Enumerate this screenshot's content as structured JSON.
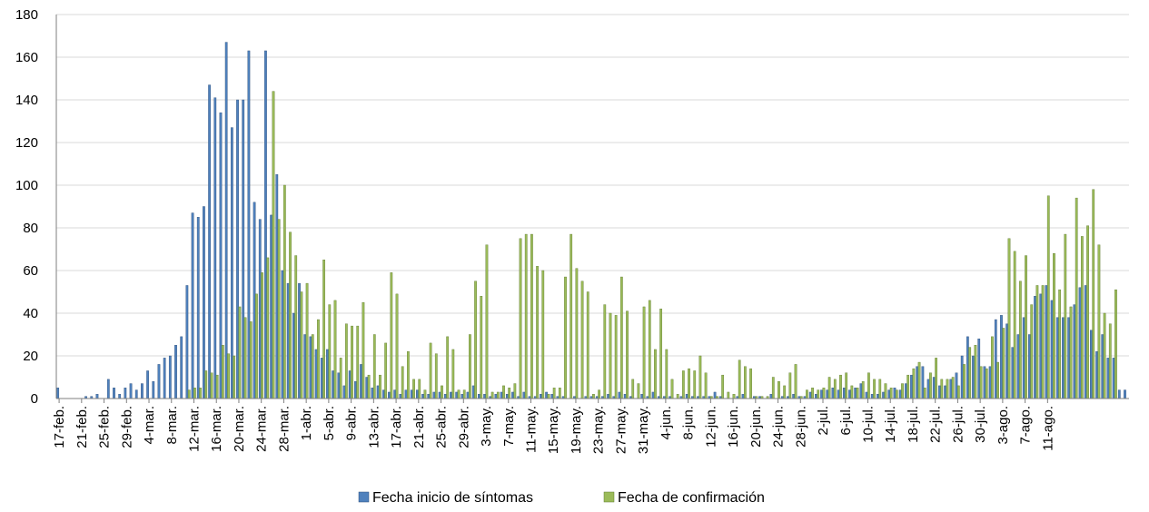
{
  "chart_data": {
    "type": "bar",
    "title": "",
    "xlabel": "",
    "ylabel": "",
    "ylim": [
      0,
      180
    ],
    "yticks": [
      0,
      20,
      40,
      60,
      80,
      100,
      120,
      140,
      160,
      180
    ],
    "grid": true,
    "legend_position": "bottom",
    "x_start": "17-feb.",
    "x_tick_labels": [
      "17-feb.",
      "21-feb.",
      "25-feb.",
      "29-feb.",
      "4-mar.",
      "8-mar.",
      "12-mar.",
      "16-mar.",
      "20-mar.",
      "24-mar.",
      "28-mar.",
      "1-abr.",
      "5-abr.",
      "9-abr.",
      "13-abr.",
      "17-abr.",
      "21-abr.",
      "25-abr.",
      "29-abr.",
      "3-may.",
      "7-may.",
      "11-may.",
      "15-may.",
      "19-may.",
      "23-may.",
      "27-may.",
      "31-may.",
      "4-jun.",
      "8-jun.",
      "12-jun.",
      "16-jun.",
      "20-jun.",
      "24-jun.",
      "28-jun.",
      "2-jul.",
      "6-jul.",
      "10-jul.",
      "14-jul.",
      "18-jul.",
      "22-jul.",
      "26-jul.",
      "30-jul.",
      "3-ago.",
      "7-ago.",
      "11-ago."
    ],
    "series": [
      {
        "name": "Fecha inicio de síntomas",
        "color": "#4F81BD",
        "values": [
          5,
          0,
          0,
          0,
          0,
          1,
          1,
          2,
          0,
          9,
          5,
          2,
          5,
          7,
          4,
          7,
          13,
          8,
          16,
          19,
          20,
          25,
          29,
          53,
          87,
          85,
          90,
          147,
          141,
          134,
          167,
          127,
          140,
          140,
          163,
          92,
          84,
          163,
          86,
          105,
          60,
          54,
          40,
          54,
          30,
          29,
          23,
          19,
          23,
          13,
          12,
          6,
          13,
          8,
          16,
          10,
          5,
          6,
          4,
          3,
          4,
          2,
          4,
          4,
          4,
          2,
          2,
          3,
          3,
          2,
          3,
          3,
          2,
          3,
          6,
          2,
          2,
          1,
          2,
          3,
          2,
          3,
          1,
          3,
          1,
          1,
          2,
          3,
          2,
          1,
          1,
          0,
          1,
          0,
          1,
          1,
          1,
          1,
          2,
          1,
          3,
          2,
          1,
          0,
          2,
          1,
          3,
          1,
          1,
          1,
          0,
          1,
          2,
          1,
          1,
          1,
          1,
          3,
          1,
          0,
          0,
          1,
          2,
          0,
          1,
          1,
          0,
          2,
          0,
          1,
          1,
          2,
          1,
          1,
          3,
          2,
          4,
          4,
          5,
          4,
          5,
          4,
          5,
          7,
          3,
          2,
          2,
          3,
          4,
          5,
          4,
          7,
          11,
          15,
          15,
          9,
          10,
          6,
          6,
          9,
          12,
          20,
          29,
          20,
          28,
          15,
          15,
          37,
          39,
          35,
          24,
          30,
          38,
          30,
          48,
          49,
          53,
          46,
          38,
          38,
          38,
          44,
          52,
          53,
          32,
          22,
          30,
          19,
          19,
          4,
          4
        ]
      },
      {
        "name": "Fecha de confirmación",
        "color": "#9BBB59",
        "values": [
          0,
          0,
          0,
          0,
          0,
          0,
          0,
          0,
          0,
          0,
          0,
          0,
          0,
          0,
          0,
          0,
          0,
          0,
          0,
          0,
          0,
          0,
          0,
          4,
          5,
          5,
          13,
          12,
          11,
          25,
          21,
          20,
          43,
          38,
          36,
          49,
          59,
          66,
          144,
          84,
          100,
          78,
          67,
          50,
          54,
          30,
          37,
          65,
          44,
          46,
          19,
          35,
          34,
          34,
          45,
          11,
          30,
          11,
          26,
          59,
          49,
          15,
          22,
          9,
          9,
          4,
          26,
          21,
          6,
          29,
          23,
          4,
          4,
          30,
          55,
          48,
          72,
          3,
          3,
          6,
          5,
          7,
          75,
          77,
          77,
          62,
          60,
          2,
          5,
          5,
          57,
          77,
          61,
          55,
          50,
          2,
          4,
          44,
          40,
          39,
          57,
          41,
          9,
          7,
          43,
          46,
          23,
          42,
          23,
          9,
          2,
          13,
          14,
          13,
          20,
          12,
          1,
          1,
          11,
          3,
          2,
          18,
          15,
          14,
          1,
          1,
          1,
          10,
          8,
          6,
          12,
          16,
          1,
          4,
          5,
          4,
          5,
          10,
          9,
          11,
          12,
          6,
          5,
          8,
          12,
          9,
          9,
          7,
          5,
          4,
          7,
          11,
          14,
          17,
          5,
          12,
          19,
          9,
          9,
          10,
          6,
          16,
          24,
          25,
          15,
          14,
          29,
          17,
          33,
          75,
          69,
          55,
          67,
          44,
          53,
          53,
          95,
          68,
          51,
          77,
          43,
          94,
          76,
          81,
          98,
          72,
          40,
          35,
          51
        ]
      }
    ]
  }
}
